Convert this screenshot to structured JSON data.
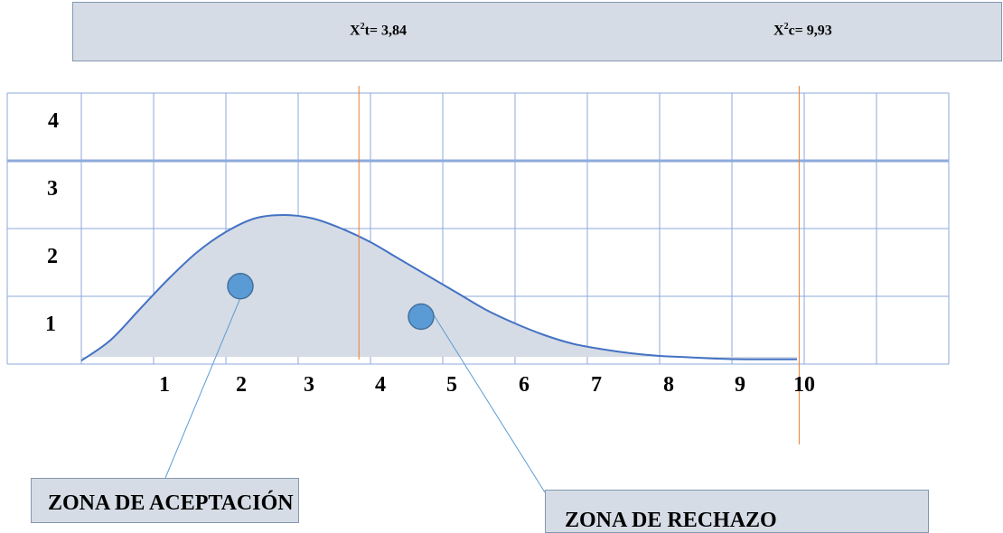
{
  "header": {
    "stat_t": {
      "symbol": "X",
      "power": "2",
      "rest": "t= 3,84"
    },
    "stat_c": {
      "symbol": "X",
      "power": "2",
      "rest": "c= 9,93"
    }
  },
  "chart_data": {
    "type": "area",
    "x_tick_labels": [
      "1",
      "2",
      "3",
      "4",
      "5",
      "6",
      "7",
      "8",
      "9",
      "10"
    ],
    "y_tick_labels": [
      "1",
      "2",
      "3",
      "4"
    ],
    "xlim": [
      0,
      12
    ],
    "ylim": [
      0,
      4
    ],
    "grid": true,
    "curve": {
      "x": [
        0,
        0.4,
        0.8,
        1.2,
        1.6,
        2.0,
        2.4,
        2.8,
        3.2,
        3.6,
        4.0,
        4.4,
        4.8,
        5.2,
        5.6,
        6.0,
        6.4,
        6.8,
        7.2,
        7.6,
        8.0,
        8.4,
        8.8,
        9.2,
        9.6,
        9.9
      ],
      "y": [
        0.05,
        0.35,
        0.8,
        1.25,
        1.65,
        1.95,
        2.15,
        2.2,
        2.15,
        2.0,
        1.8,
        1.55,
        1.3,
        1.05,
        0.8,
        0.6,
        0.43,
        0.3,
        0.22,
        0.16,
        0.12,
        0.1,
        0.08,
        0.07,
        0.07,
        0.07
      ],
      "fill_color": "#d6dce5",
      "line_color": "#4472c4"
    },
    "critical_lines": [
      {
        "x": 3.84,
        "color": "#ed7d31"
      },
      {
        "x": 9.93,
        "color": "#ed7d31"
      }
    ],
    "markers": [
      {
        "x": 2.2,
        "y": 1.15,
        "color": "#5b9bd5"
      },
      {
        "x": 4.7,
        "y": 0.7,
        "color": "#5b9bd5"
      }
    ]
  },
  "zones": {
    "accept_label": "ZONA DE ACEPTACIÓN",
    "reject_label": "ZONA DE RECHAZO"
  }
}
